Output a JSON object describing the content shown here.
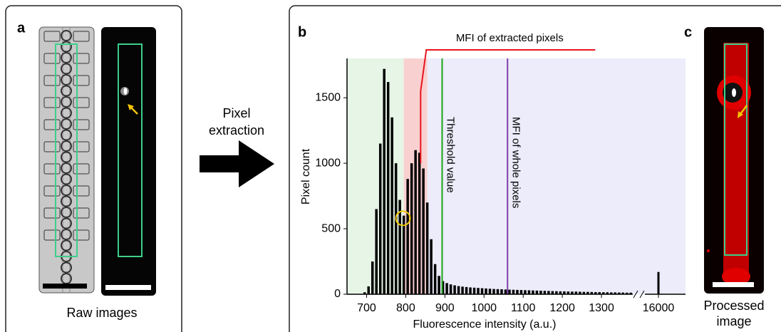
{
  "panels": {
    "a": {
      "label": "a",
      "caption": "Raw images"
    },
    "arrow_text": [
      "Pixel",
      "extraction"
    ],
    "b": {
      "label": "b"
    },
    "c": {
      "label": "c",
      "caption": [
        "Processed",
        "image"
      ]
    }
  },
  "chart_data": {
    "type": "histogram",
    "xlabel": "Fluorescence intensity (a.u.)",
    "ylabel": "Pixel count",
    "color": "#000000",
    "bins": [
      690,
      700,
      710,
      720,
      730,
      740,
      750,
      760,
      770,
      780,
      790,
      800,
      810,
      820,
      830,
      840,
      850,
      860,
      870,
      880,
      890,
      900,
      910,
      920,
      930,
      940,
      950,
      960,
      970,
      980,
      990,
      1000,
      1010,
      1020,
      1030,
      1040,
      1050,
      1060,
      1070,
      1080,
      1090,
      1100,
      1110,
      1120,
      1130,
      1140,
      1150,
      1160,
      1170,
      1180,
      1190,
      1200,
      1210,
      1220,
      1230,
      1240,
      1250,
      1260,
      1270,
      1280,
      1290,
      1300,
      1310,
      1320,
      1330,
      1340,
      1350,
      1360,
      1370,
      1380
    ],
    "values": [
      15,
      60,
      250,
      650,
      1150,
      1720,
      1620,
      1350,
      1000,
      720,
      600,
      880,
      1000,
      1100,
      1080,
      960,
      700,
      420,
      230,
      140,
      100,
      85,
      75,
      68,
      62,
      58,
      55,
      52,
      50,
      48,
      46,
      44,
      42,
      40,
      39,
      38,
      36,
      35,
      34,
      33,
      32,
      31,
      30,
      29,
      28,
      27,
      26,
      25,
      24,
      23,
      22,
      22,
      21,
      20,
      20,
      19,
      18,
      18,
      17,
      16,
      16,
      15,
      15,
      14,
      14,
      13,
      13,
      12,
      12
    ],
    "overflow_bar": {
      "x": 16000,
      "value": 170
    },
    "xlim": [
      650,
      16100
    ],
    "x_break": [
      1380,
      15950
    ],
    "xticks": [
      700,
      800,
      900,
      1000,
      1100,
      1200,
      1300,
      16000
    ],
    "ylim": [
      0,
      1800
    ],
    "yticks": [
      0,
      500,
      1000,
      1500
    ],
    "regions": [
      {
        "range": [
          650,
          795
        ],
        "color": "#e6f5e6"
      },
      {
        "range": [
          795,
          855
        ],
        "color": "#f9d0d0"
      },
      {
        "range": [
          855,
          16100
        ],
        "color": "#ececfa"
      }
    ],
    "annotations": [
      {
        "x": 893,
        "label": "Threshold value",
        "color": "#1aa51a"
      },
      {
        "x": 1060,
        "label": "MFI of whole pixels",
        "color": "#7d3fa8"
      },
      {
        "x": 838,
        "label": "MFI of extracted pixels",
        "color": "#e8141e"
      }
    ],
    "marker": {
      "x": 793,
      "y": 580,
      "color": "#f0c800"
    }
  }
}
